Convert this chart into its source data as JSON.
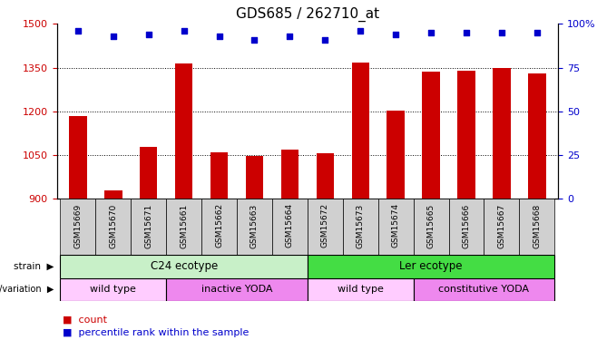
{
  "title": "GDS685 / 262710_at",
  "categories": [
    "GSM15669",
    "GSM15670",
    "GSM15671",
    "GSM15661",
    "GSM15662",
    "GSM15663",
    "GSM15664",
    "GSM15672",
    "GSM15673",
    "GSM15674",
    "GSM15665",
    "GSM15666",
    "GSM15667",
    "GSM15668"
  ],
  "bar_values": [
    1185,
    930,
    1078,
    1365,
    1060,
    1048,
    1070,
    1055,
    1368,
    1202,
    1335,
    1338,
    1348,
    1330
  ],
  "percentile_values": [
    96,
    93,
    94,
    96,
    93,
    91,
    93,
    91,
    96,
    94,
    95,
    95,
    95,
    95
  ],
  "bar_color": "#cc0000",
  "dot_color": "#0000cc",
  "ylim_left": [
    900,
    1500
  ],
  "ylim_right": [
    0,
    100
  ],
  "yticks_left": [
    900,
    1050,
    1200,
    1350,
    1500
  ],
  "yticks_right": [
    0,
    25,
    50,
    75,
    100
  ],
  "strain_groups": [
    {
      "label": "C24 ecotype",
      "start": 0,
      "end": 7,
      "color": "#c8f0c8"
    },
    {
      "label": "Ler ecotype",
      "start": 7,
      "end": 14,
      "color": "#44dd44"
    }
  ],
  "genotype_groups": [
    {
      "label": "wild type",
      "start": 0,
      "end": 3,
      "color": "#ffccff"
    },
    {
      "label": "inactive YODA",
      "start": 3,
      "end": 7,
      "color": "#ee88ee"
    },
    {
      "label": "wild type",
      "start": 7,
      "end": 10,
      "color": "#ffccff"
    },
    {
      "label": "constitutive YODA",
      "start": 10,
      "end": 14,
      "color": "#ee88ee"
    }
  ],
  "bar_color_red": "#cc0000",
  "dot_color_blue": "#0000cc",
  "title_fontsize": 11,
  "axis_color_left": "#cc0000",
  "axis_color_right": "#0000cc",
  "bar_bottom": 900,
  "xtick_bg": "#d0d0d0"
}
